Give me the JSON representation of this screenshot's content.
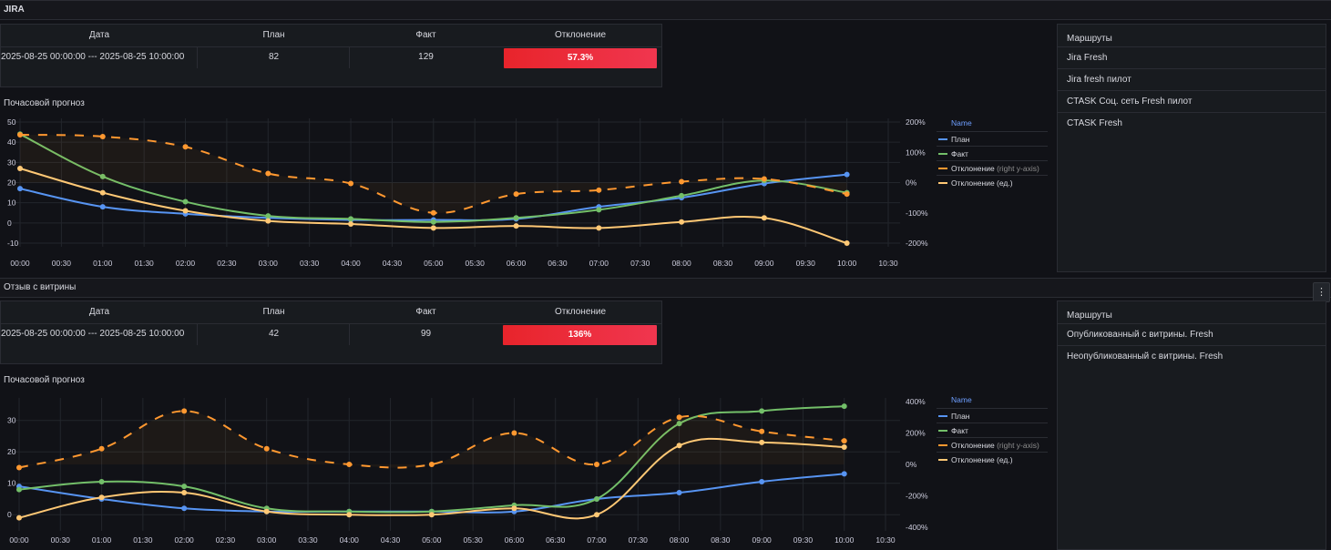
{
  "dashboard": {
    "sections": [
      {
        "title": "JIRA",
        "table": {
          "headers": [
            "Дата",
            "План",
            "Факт",
            "Отклонение"
          ],
          "date": "2025-08-25 00:00:00 --- 2025-08-25 10:00:00",
          "plan": "82",
          "fact": "129",
          "deviation": "57.3%"
        },
        "chart_title": "Почасовой прогноз",
        "routes": {
          "header": "Маршруты",
          "items": [
            "Jira Fresh",
            "Jira fresh пилот",
            "CTASK Соц. сеть Fresh пилот",
            "CTASK Fresh"
          ]
        }
      },
      {
        "title": "Отзыв с витрины",
        "table": {
          "headers": [
            "Дата",
            "План",
            "Факт",
            "Отклонение"
          ],
          "date": "2025-08-25 00:00:00 --- 2025-08-25 10:00:00",
          "plan": "42",
          "fact": "99",
          "deviation": "136%"
        },
        "chart_title": "Почасовой прогноз",
        "routes": {
          "header": "Маршруты",
          "items": [
            "Опубликованный с витрины. Fresh",
            "Неопубликованный с витрины. Fresh"
          ]
        }
      }
    ],
    "menu_icon": "kebab-menu-icon",
    "colors": {
      "plan": "#5794f2",
      "fact": "#73bf69",
      "deviation": "#ff9830",
      "deviation_units": "#ffc875",
      "badge_red": "#e8242b",
      "legend_header": "#6e9fff"
    }
  },
  "chart_data": [
    {
      "type": "line",
      "title": "Почасовой прогноз",
      "legend_header": "Name",
      "legend_position": "right",
      "x": [
        "00:00",
        "01:00",
        "02:00",
        "03:00",
        "04:00",
        "05:00",
        "06:00",
        "07:00",
        "08:00",
        "09:00",
        "10:00"
      ],
      "x_ticks": [
        "00:00",
        "00:30",
        "01:00",
        "01:30",
        "02:00",
        "02:30",
        "03:00",
        "03:30",
        "04:00",
        "04:30",
        "05:00",
        "05:30",
        "06:00",
        "06:30",
        "07:00",
        "07:30",
        "08:00",
        "08:30",
        "09:00",
        "09:30",
        "10:00",
        "10:30"
      ],
      "x_range": [
        0,
        10.5
      ],
      "ylim_left": [
        -10,
        50
      ],
      "yticks_left": [
        -10,
        0,
        10,
        20,
        30,
        40,
        50
      ],
      "ylim_right": [
        -200,
        200
      ],
      "yticks_right": [
        "-200%",
        "-100%",
        "0%",
        "100%",
        "200%"
      ],
      "grid": true,
      "series": [
        {
          "name": "План",
          "axis": "left",
          "color": "#5794f2",
          "dashed": false,
          "values": [
            17,
            8,
            4.5,
            2.5,
            1.5,
            1.5,
            2,
            8,
            12.5,
            19.5,
            24
          ]
        },
        {
          "name": "Факт",
          "axis": "left",
          "color": "#73bf69",
          "dashed": false,
          "values": [
            44,
            23,
            10.5,
            3.5,
            2,
            0.5,
            2.5,
            6.5,
            13.5,
            21,
            15
          ]
        },
        {
          "name": "Отклонение",
          "name_suffix": "(right y-axis)",
          "axis": "right",
          "color": "#ff9830",
          "dashed": true,
          "values": [
            158,
            152,
            118,
            30,
            -3,
            -100,
            -38,
            -25,
            3,
            12,
            -38
          ]
        },
        {
          "name": "Отклонение (ед.)",
          "axis": "left",
          "color": "#ffc875",
          "dashed": false,
          "values": [
            27,
            15,
            6,
            1,
            -0.5,
            -2.5,
            -1.5,
            -2.5,
            0.5,
            2.5,
            -10
          ]
        }
      ]
    },
    {
      "type": "line",
      "title": "Почасовой прогноз",
      "legend_header": "Name",
      "legend_position": "right",
      "x": [
        "00:00",
        "01:00",
        "02:00",
        "03:00",
        "04:00",
        "05:00",
        "06:00",
        "07:00",
        "08:00",
        "09:00",
        "10:00"
      ],
      "x_ticks": [
        "00:00",
        "00:30",
        "01:00",
        "01:30",
        "02:00",
        "02:30",
        "03:00",
        "03:30",
        "04:00",
        "04:30",
        "05:00",
        "05:30",
        "06:00",
        "06:30",
        "07:00",
        "07:30",
        "08:00",
        "08:30",
        "09:00",
        "09:30",
        "10:00",
        "10:30"
      ],
      "x_range": [
        0,
        10.5
      ],
      "ylim_left": [
        -4,
        36
      ],
      "yticks_left": [
        0,
        10,
        20,
        30
      ],
      "ylim_right": [
        -400,
        400
      ],
      "yticks_right": [
        "-400%",
        "-200%",
        "0%",
        "200%",
        "400%"
      ],
      "grid": true,
      "series": [
        {
          "name": "План",
          "axis": "left",
          "color": "#5794f2",
          "dashed": false,
          "values": [
            9,
            5,
            2,
            1,
            1,
            1,
            1,
            5,
            7,
            10.5,
            13
          ]
        },
        {
          "name": "Факт",
          "axis": "left",
          "color": "#73bf69",
          "dashed": false,
          "values": [
            8,
            10.5,
            9,
            2,
            1,
            1,
            3,
            5,
            29,
            33,
            34.5
          ]
        },
        {
          "name": "Отклонение",
          "name_suffix": "(right y-axis)",
          "axis": "right",
          "color": "#ff9830",
          "dashed": true,
          "values": [
            -20,
            100,
            340,
            100,
            0,
            0,
            200,
            0,
            300,
            210,
            150
          ]
        },
        {
          "name": "Отклонение (ед.)",
          "axis": "left",
          "color": "#ffc875",
          "dashed": false,
          "values": [
            -1,
            5.5,
            7,
            1,
            0,
            0,
            2,
            0,
            22,
            23,
            21.5
          ]
        }
      ]
    }
  ]
}
